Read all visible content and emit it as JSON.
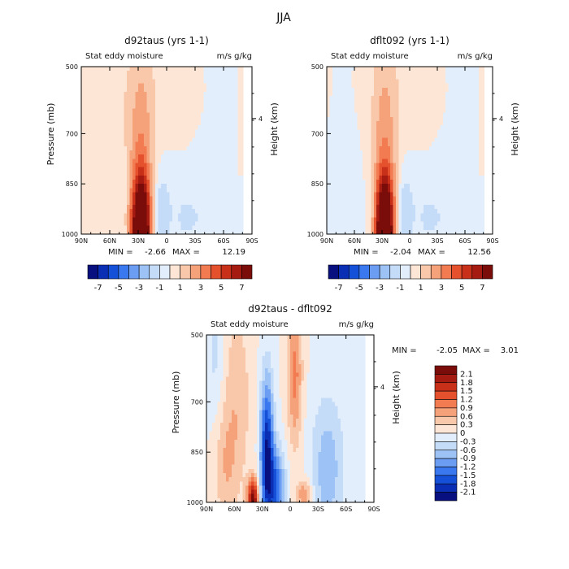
{
  "figure_title": "JJA",
  "chart_data": [
    {
      "type": "heatmap",
      "title": "d92taus (yrs 1-1)",
      "left_subtitle": "Stat eddy moisture",
      "right_subtitle": "m/s g/kg",
      "ylabel": "Pressure (mb)",
      "ylabel_right": "Height (km)",
      "x_ticks": [
        "90N",
        "60N",
        "30N",
        "0",
        "30S",
        "60S",
        "90S"
      ],
      "y_ticks": [
        "500",
        "700",
        "850",
        "1000"
      ],
      "y_right_ticks": [
        "4"
      ],
      "ylim": [
        1000,
        500
      ],
      "min_label": "MIN =",
      "min_value": "-2.66",
      "max_label": "MAX =",
      "max_value": "12.19",
      "colorbar_labels": [
        "-7",
        "-5",
        "-3",
        "-1",
        "1",
        "3",
        "5",
        "7"
      ],
      "colors": [
        "#08107f",
        "#0a2fb4",
        "#1551d8",
        "#3a78f0",
        "#6b9ef3",
        "#9cc2f6",
        "#c5dcf9",
        "#e2eefb",
        "#fde6d5",
        "#f9c8aa",
        "#f5a27b",
        "#f27b52",
        "#e5512c",
        "#c9301a",
        "#a51a11",
        "#7a0d09"
      ]
    },
    {
      "type": "heatmap",
      "title": "dflt092 (yrs 1-1)",
      "left_subtitle": "Stat eddy moisture",
      "right_subtitle": "m/s g/kg",
      "ylabel": "",
      "ylabel_right": "Height (km)",
      "x_ticks": [
        "90N",
        "60N",
        "30N",
        "0",
        "30S",
        "60S",
        "90S"
      ],
      "y_ticks": [
        "500",
        "700",
        "850",
        "1000"
      ],
      "y_right_ticks": [
        "4"
      ],
      "ylim": [
        1000,
        500
      ],
      "min_label": "MIN =",
      "min_value": "-2.04",
      "max_label": "MAX =",
      "max_value": "12.56",
      "colorbar_labels": [
        "-7",
        "-5",
        "-3",
        "-1",
        "1",
        "3",
        "5",
        "7"
      ],
      "colors": [
        "#08107f",
        "#0a2fb4",
        "#1551d8",
        "#3a78f0",
        "#6b9ef3",
        "#9cc2f6",
        "#c5dcf9",
        "#e2eefb",
        "#fde6d5",
        "#f9c8aa",
        "#f5a27b",
        "#f27b52",
        "#e5512c",
        "#c9301a",
        "#a51a11",
        "#7a0d09"
      ]
    },
    {
      "type": "heatmap",
      "title": "d92taus - dflt092",
      "left_subtitle": "Stat eddy moisture",
      "right_subtitle": "m/s g/kg",
      "ylabel": "Pressure (mb)",
      "ylabel_right": "Height (km)",
      "x_ticks": [
        "90N",
        "60N",
        "30N",
        "0",
        "30S",
        "60S",
        "90S"
      ],
      "y_ticks": [
        "500",
        "700",
        "850",
        "1000"
      ],
      "y_right_ticks": [
        "4"
      ],
      "ylim": [
        1000,
        500
      ],
      "min_label": "MIN =",
      "min_value": "-2.05",
      "max_label": "MAX =",
      "max_value": "3.01",
      "colorbar_labels": [
        "2.1",
        "1.8",
        "1.5",
        "1.2",
        "0.9",
        "0.6",
        "0.3",
        "0",
        "-0.3",
        "-0.6",
        "-0.9",
        "-1.2",
        "-1.5",
        "-1.8",
        "-2.1"
      ],
      "colors": [
        "#7a0d09",
        "#a51a11",
        "#c9301a",
        "#e5512c",
        "#f27b52",
        "#f5a27b",
        "#f9c8aa",
        "#fde6d5",
        "#e2eefb",
        "#c5dcf9",
        "#9cc2f6",
        "#6b9ef3",
        "#3a78f0",
        "#1551d8",
        "#0a2fb4",
        "#08107f"
      ]
    }
  ]
}
